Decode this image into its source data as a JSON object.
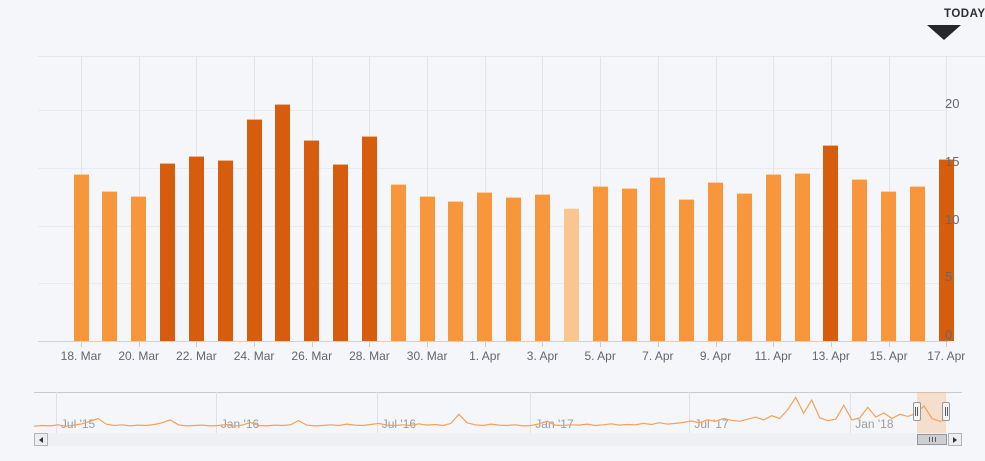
{
  "page": {
    "background": "#f5f6f9"
  },
  "today_marker": {
    "label": "TODAY",
    "icon": "down-triangle",
    "color": "#26262b"
  },
  "chart_data": {
    "type": "bar",
    "title": "",
    "xlabel": "",
    "ylabel": "",
    "grid": true,
    "y_axis_side": "right",
    "yticks": [
      0,
      5,
      10,
      15,
      20
    ],
    "ylim": [
      0,
      24.7
    ],
    "categories": [
      "18. Mar",
      "19. Mar",
      "20. Mar",
      "21. Mar",
      "22. Mar",
      "23. Mar",
      "24. Mar",
      "25. Mar",
      "26. Mar",
      "27. Mar",
      "28. Mar",
      "29. Mar",
      "30. Mar",
      "31. Mar",
      "1. Apr",
      "2. Apr",
      "3. Apr",
      "4. Apr",
      "5. Apr",
      "6. Apr",
      "7. Apr",
      "8. Apr",
      "9. Apr",
      "10. Apr",
      "11. Apr",
      "12. Apr",
      "13. Apr",
      "14. Apr",
      "15. Apr",
      "16. Apr",
      "17. Apr"
    ],
    "values": [
      14.5,
      13.0,
      12.6,
      15.4,
      16.0,
      15.7,
      19.2,
      20.5,
      17.4,
      15.3,
      17.8,
      13.6,
      12.6,
      12.1,
      12.9,
      12.5,
      12.7,
      11.5,
      13.4,
      13.3,
      14.2,
      12.3,
      13.8,
      12.8,
      14.5,
      14.6,
      17.0,
      14.0,
      13.0,
      13.4,
      15.8
    ],
    "bar_tones": [
      "light",
      "light",
      "light",
      "dark",
      "dark",
      "dark",
      "dark",
      "dark",
      "dark",
      "dark",
      "dark",
      "light",
      "light",
      "light",
      "light",
      "light",
      "light",
      "faded",
      "light",
      "light",
      "light",
      "light",
      "light",
      "light",
      "light",
      "light",
      "dark",
      "light",
      "light",
      "light",
      "dark"
    ],
    "colors": {
      "light": "#f8963c",
      "dark": "#d65c0e",
      "faded": "#fbc58f"
    },
    "x_tick_labels": [
      "18. Mar",
      "20. Mar",
      "22. Mar",
      "24. Mar",
      "26. Mar",
      "28. Mar",
      "30. Mar",
      "1. Apr",
      "3. Apr",
      "5. Apr",
      "7. Apr",
      "9. Apr",
      "11. Apr",
      "13. Apr",
      "15. Apr",
      "17. Apr"
    ],
    "navigator": {
      "type": "line",
      "line_color": "#f6a158",
      "x_labels": [
        {
          "label": "Jul '15",
          "pos": 0.024
        },
        {
          "label": "Jan '16",
          "pos": 0.199
        },
        {
          "label": "Jul '16",
          "pos": 0.375
        },
        {
          "label": "Jan '17",
          "pos": 0.543
        },
        {
          "label": "Jul '17",
          "pos": 0.717
        },
        {
          "label": "Jan '18",
          "pos": 0.893
        }
      ],
      "values": [
        0.8,
        1.0,
        0.9,
        1.2,
        0.8,
        1.1,
        1.5,
        2.2,
        3.0,
        1.4,
        1.0,
        1.2,
        0.9,
        1.1,
        1.0,
        1.3,
        1.8,
        2.6,
        1.2,
        0.9,
        1.0,
        1.1,
        0.9,
        1.0,
        1.3,
        0.8,
        1.1,
        1.9,
        1.0,
        0.9,
        1.1,
        1.0,
        1.2,
        2.4,
        1.1,
        0.9,
        1.0,
        1.2,
        1.0,
        1.4,
        1.1,
        1.0,
        1.3,
        1.6,
        1.1,
        1.0,
        1.2,
        1.0,
        1.5,
        1.1,
        1.3,
        1.0,
        1.6,
        4.2,
        1.8,
        1.2,
        1.0,
        1.4,
        1.1,
        1.0,
        1.2,
        0.9,
        1.0,
        1.5,
        2.2,
        1.1,
        1.0,
        1.2,
        1.1,
        1.4,
        1.0,
        1.2,
        1.5,
        1.1,
        1.3,
        1.2,
        1.6,
        1.3,
        1.8,
        1.4,
        1.6,
        1.9,
        2.3,
        1.8,
        2.6,
        2.2,
        3.0,
        2.5,
        2.2,
        2.8,
        3.4,
        2.6,
        3.8,
        3.0,
        5.5,
        9.0,
        4.5,
        8.3,
        3.2,
        2.4,
        2.8,
        6.8,
        2.6,
        3.2,
        6.2,
        3.4,
        4.6,
        3.0,
        4.2,
        3.6,
        4.4,
        6.6,
        3.0,
        2.2,
        2.8
      ],
      "value_range": [
        0,
        10
      ],
      "selected_window": [
        0.966,
        0.998
      ]
    }
  },
  "scrollbar": {
    "left_icon": "left-triangle",
    "right_icon": "right-triangle",
    "thumb_icon": "grip-lines"
  }
}
